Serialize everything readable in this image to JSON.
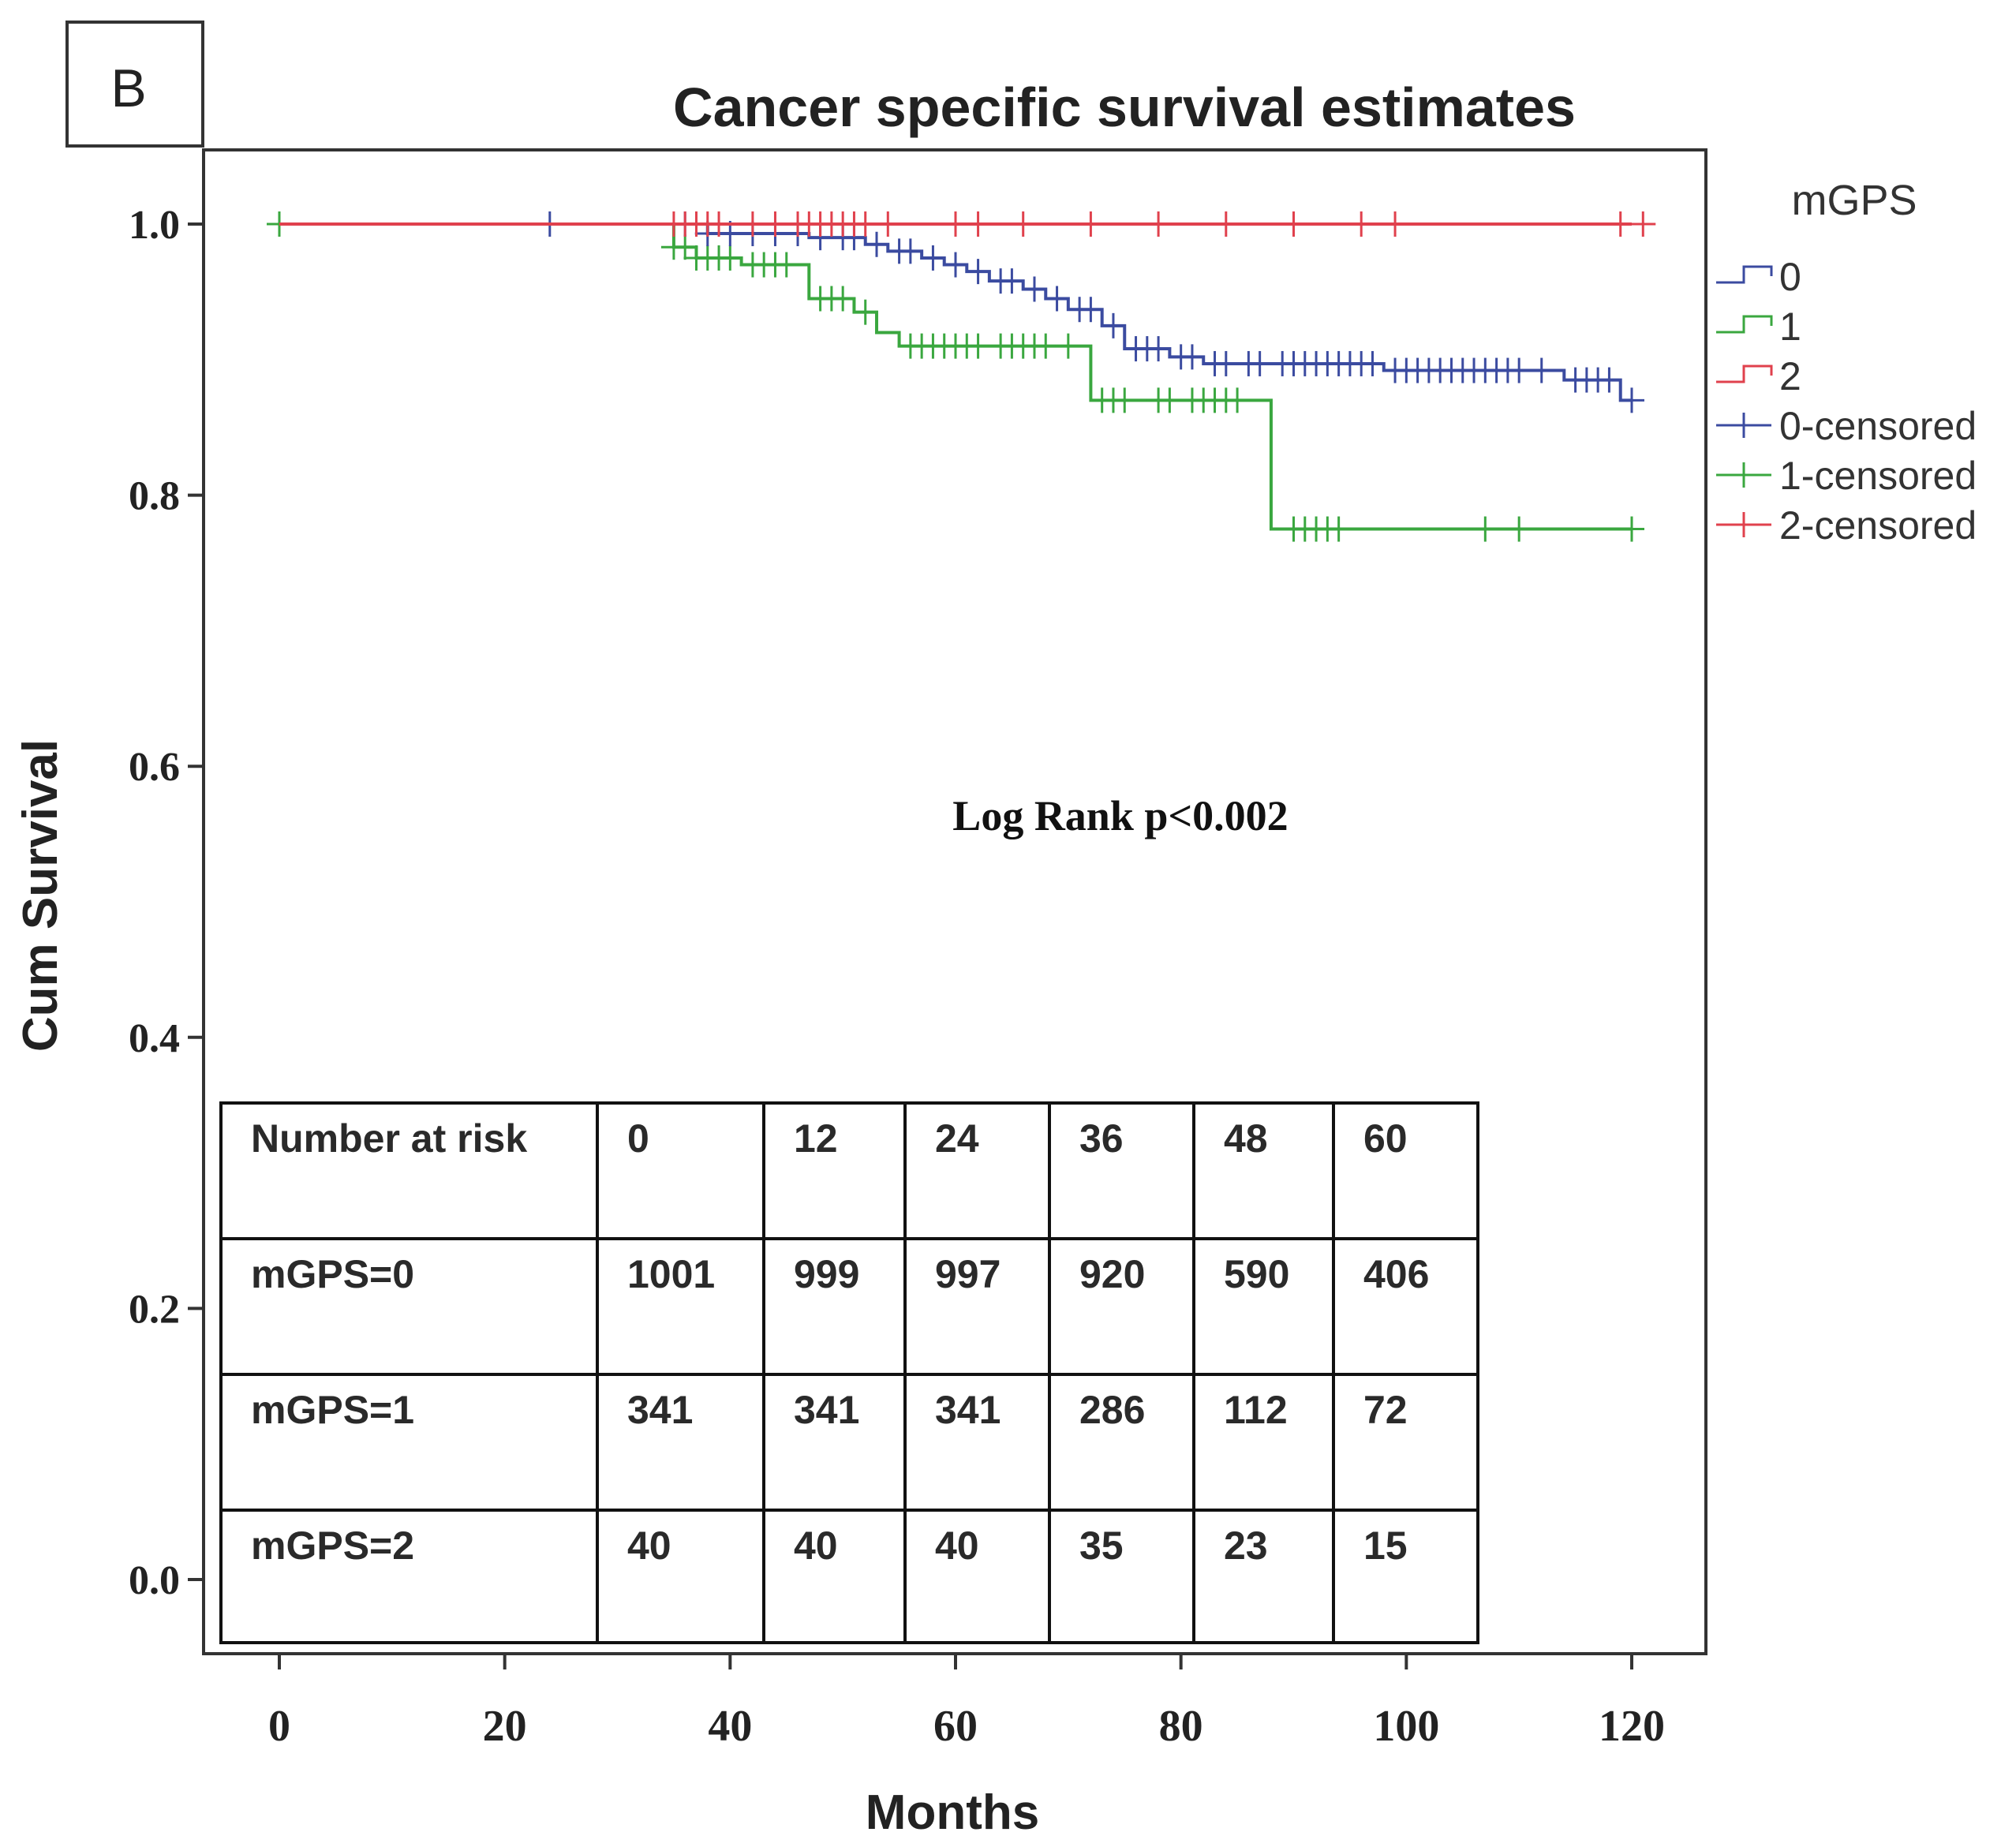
{
  "chart_data": {
    "type": "line",
    "panel_label": "B",
    "title": "Cancer specific survival estimates",
    "xlabel": "Months",
    "ylabel": "Cum Survival",
    "xlim": [
      -5,
      127
    ],
    "ylim": [
      -0.06,
      1.06
    ],
    "xticks": [
      0,
      20,
      40,
      60,
      80,
      100,
      120
    ],
    "yticks": [
      0.0,
      0.2,
      0.4,
      0.6,
      0.8,
      1.0
    ],
    "ytick_labels": [
      "0.0",
      "0.2",
      "0.4",
      "0.6",
      "0.8",
      "1.0"
    ],
    "annotation": "Log Rank p<0.002",
    "legend": {
      "title": "mGPS",
      "position": "right",
      "entries": [
        {
          "label": "0",
          "kind": "step",
          "series": 0
        },
        {
          "label": "1",
          "kind": "step",
          "series": 1
        },
        {
          "label": "2",
          "kind": "step",
          "series": 2
        },
        {
          "label": "0-censored",
          "kind": "censor",
          "series": 0
        },
        {
          "label": "1-censored",
          "kind": "censor",
          "series": 1
        },
        {
          "label": "2-censored",
          "kind": "censor",
          "series": 2
        }
      ]
    },
    "series": [
      {
        "name": "0",
        "color": "#3b4ba0",
        "steps": [
          [
            0,
            1.0
          ],
          [
            38,
            0.993
          ],
          [
            47,
            0.99
          ],
          [
            52,
            0.985
          ],
          [
            54,
            0.98
          ],
          [
            57,
            0.975
          ],
          [
            59,
            0.97
          ],
          [
            61,
            0.965
          ],
          [
            63,
            0.958
          ],
          [
            66,
            0.952
          ],
          [
            68,
            0.945
          ],
          [
            70,
            0.937
          ],
          [
            73,
            0.925
          ],
          [
            75,
            0.908
          ],
          [
            79,
            0.902
          ],
          [
            82,
            0.897
          ],
          [
            98,
            0.892
          ],
          [
            114,
            0.885
          ],
          [
            119,
            0.87
          ]
        ],
        "end": 120,
        "censored": [
          [
            24,
            1.0
          ],
          [
            36,
            1.0
          ],
          [
            38,
            0.993
          ],
          [
            40,
            0.993
          ],
          [
            42,
            0.993
          ],
          [
            44,
            0.993
          ],
          [
            46,
            0.993
          ],
          [
            48,
            0.99
          ],
          [
            50,
            0.99
          ],
          [
            51,
            0.99
          ],
          [
            53,
            0.985
          ],
          [
            55,
            0.98
          ],
          [
            56,
            0.98
          ],
          [
            58,
            0.975
          ],
          [
            60,
            0.97
          ],
          [
            62,
            0.965
          ],
          [
            64,
            0.958
          ],
          [
            65,
            0.958
          ],
          [
            67,
            0.952
          ],
          [
            69,
            0.945
          ],
          [
            71,
            0.937
          ],
          [
            72,
            0.937
          ],
          [
            74,
            0.925
          ],
          [
            76,
            0.908
          ],
          [
            77,
            0.908
          ],
          [
            78,
            0.908
          ],
          [
            80,
            0.902
          ],
          [
            81,
            0.902
          ],
          [
            83,
            0.897
          ],
          [
            84,
            0.897
          ],
          [
            86,
            0.897
          ],
          [
            87,
            0.897
          ],
          [
            89,
            0.897
          ],
          [
            90,
            0.897
          ],
          [
            91,
            0.897
          ],
          [
            92,
            0.897
          ],
          [
            93,
            0.897
          ],
          [
            94,
            0.897
          ],
          [
            95,
            0.897
          ],
          [
            96,
            0.897
          ],
          [
            97,
            0.897
          ],
          [
            99,
            0.892
          ],
          [
            100,
            0.892
          ],
          [
            101,
            0.892
          ],
          [
            102,
            0.892
          ],
          [
            103,
            0.892
          ],
          [
            104,
            0.892
          ],
          [
            105,
            0.892
          ],
          [
            106,
            0.892
          ],
          [
            107,
            0.892
          ],
          [
            108,
            0.892
          ],
          [
            109,
            0.892
          ],
          [
            110,
            0.892
          ],
          [
            112,
            0.892
          ],
          [
            115,
            0.885
          ],
          [
            116,
            0.885
          ],
          [
            117,
            0.885
          ],
          [
            118,
            0.885
          ],
          [
            120,
            0.87
          ]
        ]
      },
      {
        "name": "1",
        "color": "#3aa73f",
        "steps": [
          [
            0,
            1.0
          ],
          [
            35,
            0.983
          ],
          [
            37,
            0.975
          ],
          [
            41,
            0.97
          ],
          [
            47,
            0.945
          ],
          [
            51,
            0.935
          ],
          [
            53,
            0.92
          ],
          [
            55,
            0.91
          ],
          [
            72,
            0.87
          ],
          [
            88,
            0.775
          ]
        ],
        "end": 120,
        "censored": [
          [
            0,
            1.0
          ],
          [
            35,
            0.983
          ],
          [
            36,
            0.983
          ],
          [
            37,
            0.975
          ],
          [
            38,
            0.975
          ],
          [
            39,
            0.975
          ],
          [
            40,
            0.975
          ],
          [
            42,
            0.97
          ],
          [
            43,
            0.97
          ],
          [
            44,
            0.97
          ],
          [
            45,
            0.97
          ],
          [
            48,
            0.945
          ],
          [
            49,
            0.945
          ],
          [
            50,
            0.945
          ],
          [
            52,
            0.935
          ],
          [
            56,
            0.91
          ],
          [
            57,
            0.91
          ],
          [
            58,
            0.91
          ],
          [
            59,
            0.91
          ],
          [
            60,
            0.91
          ],
          [
            61,
            0.91
          ],
          [
            62,
            0.91
          ],
          [
            64,
            0.91
          ],
          [
            65,
            0.91
          ],
          [
            66,
            0.91
          ],
          [
            67,
            0.91
          ],
          [
            68,
            0.91
          ],
          [
            70,
            0.91
          ],
          [
            73,
            0.87
          ],
          [
            74,
            0.87
          ],
          [
            75,
            0.87
          ],
          [
            78,
            0.87
          ],
          [
            79,
            0.87
          ],
          [
            81,
            0.87
          ],
          [
            82,
            0.87
          ],
          [
            83,
            0.87
          ],
          [
            84,
            0.87
          ],
          [
            85,
            0.87
          ],
          [
            90,
            0.775
          ],
          [
            91,
            0.775
          ],
          [
            92,
            0.775
          ],
          [
            93,
            0.775
          ],
          [
            94,
            0.775
          ],
          [
            107,
            0.775
          ],
          [
            110,
            0.775
          ],
          [
            120,
            0.775
          ]
        ]
      },
      {
        "name": "2",
        "color": "#e0414d",
        "steps": [
          [
            0,
            1.0
          ]
        ],
        "end": 120,
        "censored": [
          [
            35,
            1.0
          ],
          [
            36,
            1.0
          ],
          [
            37,
            1.0
          ],
          [
            38,
            1.0
          ],
          [
            39,
            1.0
          ],
          [
            42,
            1.0
          ],
          [
            44,
            1.0
          ],
          [
            46,
            1.0
          ],
          [
            47,
            1.0
          ],
          [
            48,
            1.0
          ],
          [
            49,
            1.0
          ],
          [
            50,
            1.0
          ],
          [
            51,
            1.0
          ],
          [
            52,
            1.0
          ],
          [
            54,
            1.0
          ],
          [
            60,
            1.0
          ],
          [
            62,
            1.0
          ],
          [
            66,
            1.0
          ],
          [
            72,
            1.0
          ],
          [
            78,
            1.0
          ],
          [
            84,
            1.0
          ],
          [
            90,
            1.0
          ],
          [
            96,
            1.0
          ],
          [
            99,
            1.0
          ],
          [
            119,
            1.0
          ],
          [
            121,
            1.0
          ]
        ]
      }
    ],
    "risk_table": {
      "header": [
        "Number at risk",
        "0",
        "12",
        "24",
        "36",
        "48",
        "60"
      ],
      "rows": [
        [
          "mGPS=0",
          "1001",
          "999",
          "997",
          "920",
          "590",
          "406"
        ],
        [
          "mGPS=1",
          "341",
          "341",
          "341",
          "286",
          "112",
          "72"
        ],
        [
          "mGPS=2",
          "40",
          "40",
          "40",
          "35",
          "23",
          "15"
        ]
      ]
    }
  }
}
